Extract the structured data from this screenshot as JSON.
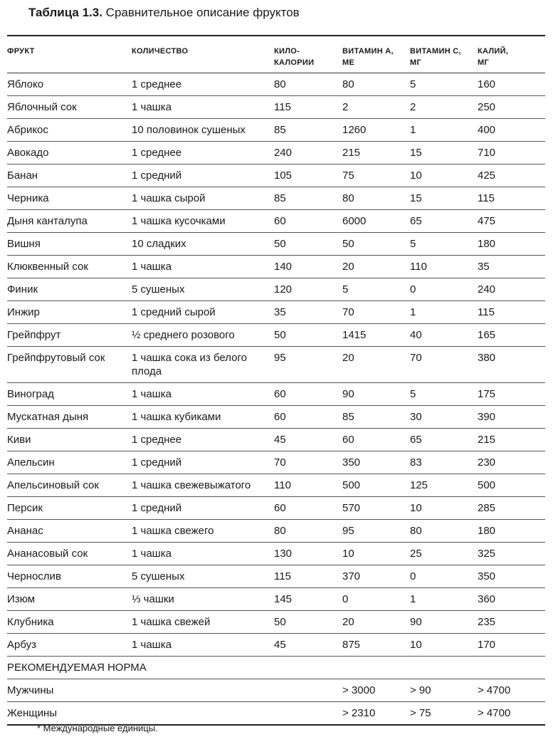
{
  "title": {
    "label": "Таблица 1.3.",
    "text": " Сравнительное описание фруктов"
  },
  "headers": [
    "ФРУКТ",
    "КОЛИЧЕСТВО",
    "КИЛО-\nКАЛОРИИ",
    "ВИТАМИН А,\nМЕ",
    "ВИТАМИН С,\nМГ",
    "КАЛИЙ,\nМГ"
  ],
  "rows": [
    [
      "Яблоко",
      "1 среднее",
      "80",
      "80",
      "5",
      "160"
    ],
    [
      "Яблочный сок",
      "1 чашка",
      "115",
      "2",
      "2",
      "250"
    ],
    [
      "Абрикос",
      "10 половинок сушеных",
      "85",
      "1260",
      "1",
      "400"
    ],
    [
      "Авокадо",
      "1 среднее",
      "240",
      "215",
      "15",
      "710"
    ],
    [
      "Банан",
      "1 средний",
      "105",
      "75",
      "10",
      "425"
    ],
    [
      "Черника",
      "1 чашка сырой",
      "85",
      "80",
      "15",
      "115"
    ],
    [
      "Дыня канталупа",
      "1 чашка кусочками",
      "60",
      "6000",
      "65",
      "475"
    ],
    [
      "Вишня",
      "10 сладких",
      "50",
      "50",
      "5",
      "180"
    ],
    [
      "Клюквенный сок",
      "1 чашка",
      "140",
      "20",
      "110",
      "35"
    ],
    [
      "Финик",
      "5 сушеных",
      "120",
      "5",
      "0",
      "240"
    ],
    [
      "Инжир",
      "1 средний сырой",
      "35",
      "70",
      "1",
      "115"
    ],
    [
      "Грейпфрут",
      "½ среднего розового",
      "50",
      "1415",
      "40",
      "165"
    ],
    [
      "Грейпфрутовый сок",
      "1 чашка сока из белого плода",
      "95",
      "20",
      "70",
      "380"
    ],
    [
      "Виноград",
      "1 чашка",
      "60",
      "90",
      "5",
      "175"
    ],
    [
      "Мускатная дыня",
      "1 чашка кубиками",
      "60",
      "85",
      "30",
      "390"
    ],
    [
      "Киви",
      "1 среднее",
      "45",
      "60",
      "65",
      "215"
    ],
    [
      "Апельсин",
      "1 средний",
      "70",
      "350",
      "83",
      "230"
    ],
    [
      "Апельсиновый сок",
      "1 чашка свежевыжатого",
      "110",
      "500",
      "125",
      "500"
    ],
    [
      "Персик",
      "1 средний",
      "60",
      "570",
      "10",
      "285"
    ],
    [
      "Ананас",
      "1 чашка свежего",
      "80",
      "95",
      "80",
      "180"
    ],
    [
      "Ананасовый сок",
      "1 чашка",
      "130",
      "10",
      "25",
      "325"
    ],
    [
      "Чернослив",
      "5 сушеных",
      "115",
      "370",
      "0",
      "350"
    ],
    [
      "Изюм",
      "⅓ чашки",
      "145",
      "0",
      "1",
      "360"
    ],
    [
      "Клубника",
      "1 чашка свежей",
      "50",
      "20",
      "90",
      "235"
    ],
    [
      "Арбуз",
      "1 чашка",
      "45",
      "875",
      "10",
      "170"
    ]
  ],
  "norm_heading": "РЕКОМЕНДУЕМАЯ НОРМА",
  "norms": [
    [
      "Мужчины",
      "",
      "",
      "> 3000",
      "> 90",
      "> 4700"
    ],
    [
      "Женщины",
      "",
      "",
      "> 2310",
      "> 75",
      "> 4700"
    ]
  ],
  "footnote": "* Международные единицы."
}
